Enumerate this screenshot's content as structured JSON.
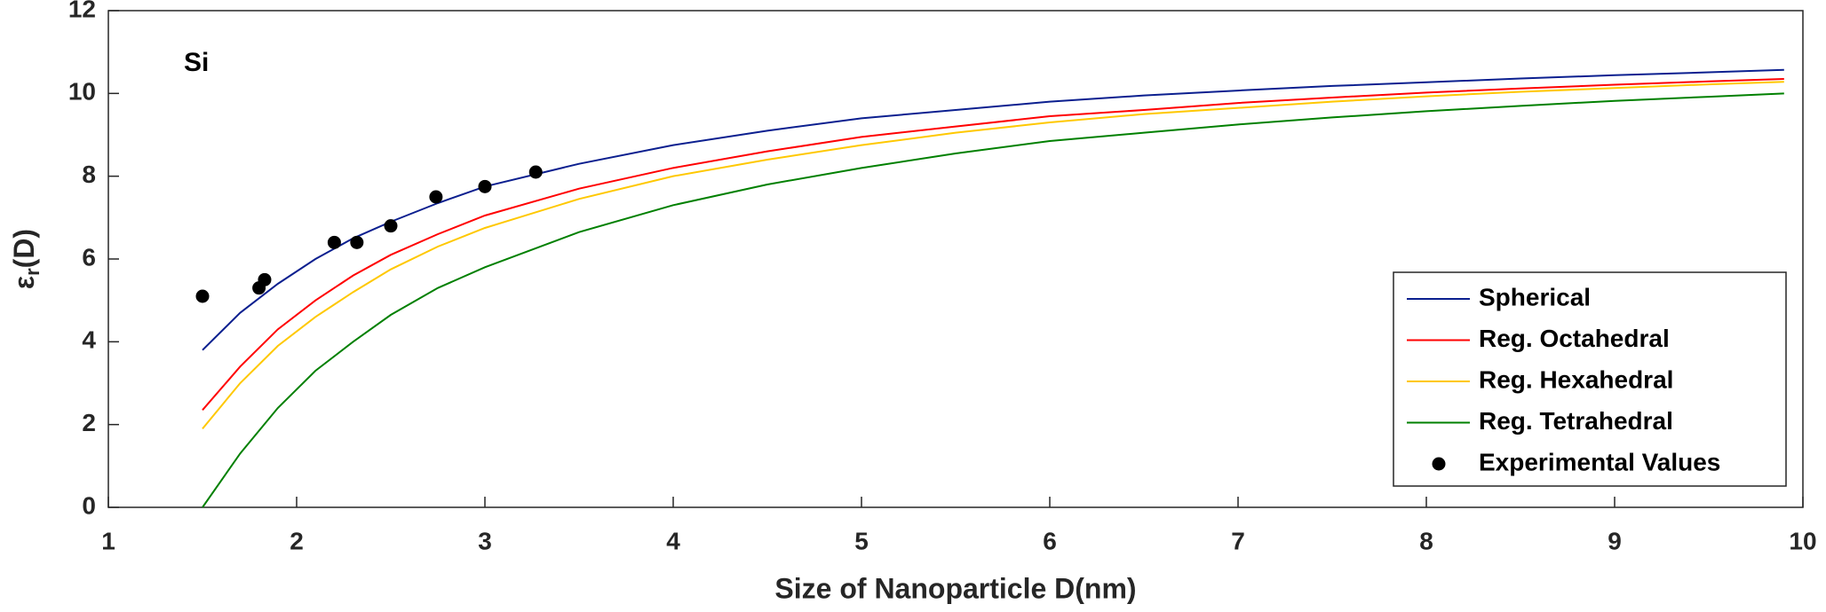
{
  "chart_data": {
    "type": "line",
    "annotation": "Si",
    "xlabel": "Size of Nanoparticle D(nm)",
    "ylabel": {
      "symbol": "ε",
      "subscript": "r",
      "suffix": "(D)"
    },
    "xlim": [
      1,
      10
    ],
    "ylim": [
      0,
      12
    ],
    "xticks": [
      1,
      2,
      3,
      4,
      5,
      6,
      7,
      8,
      9,
      10
    ],
    "yticks": [
      0,
      2,
      4,
      6,
      8,
      10,
      12
    ],
    "grid": false,
    "legend": "lower right",
    "x": [
      1.5,
      1.7,
      1.9,
      2.1,
      2.3,
      2.5,
      2.75,
      3,
      3.5,
      4,
      4.5,
      5,
      5.5,
      6,
      6.5,
      7,
      7.5,
      8,
      8.5,
      9,
      9.5,
      9.9
    ],
    "series": [
      {
        "name": "Spherical",
        "color": "#0b1f8f",
        "values": [
          3.8,
          4.7,
          5.4,
          6.0,
          6.5,
          6.9,
          7.35,
          7.75,
          8.3,
          8.75,
          9.1,
          9.4,
          9.6,
          9.8,
          9.95,
          10.07,
          10.18,
          10.27,
          10.36,
          10.44,
          10.51,
          10.57
        ]
      },
      {
        "name": "Reg. Octahedral",
        "color": "#ff0000",
        "values": [
          2.35,
          3.4,
          4.3,
          5.0,
          5.6,
          6.1,
          6.6,
          7.05,
          7.7,
          8.2,
          8.6,
          8.95,
          9.2,
          9.45,
          9.6,
          9.77,
          9.9,
          10.02,
          10.12,
          10.21,
          10.29,
          10.35
        ]
      },
      {
        "name": "Reg. Hexahedral",
        "color": "#ffc800",
        "values": [
          1.9,
          3.0,
          3.9,
          4.6,
          5.2,
          5.75,
          6.3,
          6.75,
          7.45,
          8.0,
          8.4,
          8.75,
          9.05,
          9.3,
          9.5,
          9.65,
          9.8,
          9.93,
          10.04,
          10.13,
          10.22,
          10.28
        ]
      },
      {
        "name": "Reg. Tetrahedral",
        "color": "#008000",
        "values": [
          0,
          1.3,
          2.4,
          3.3,
          4.0,
          4.65,
          5.3,
          5.8,
          6.65,
          7.3,
          7.8,
          8.2,
          8.55,
          8.85,
          9.05,
          9.25,
          9.42,
          9.57,
          9.7,
          9.82,
          9.92,
          10.0
        ]
      }
    ],
    "points": {
      "name": "Experimental Values",
      "color": "#000000",
      "x": [
        1.5,
        1.8,
        1.83,
        2.2,
        2.32,
        2.5,
        2.74,
        3.0,
        3.27
      ],
      "y": [
        5.1,
        5.3,
        5.5,
        6.4,
        6.4,
        6.8,
        7.5,
        7.75,
        8.1
      ]
    }
  }
}
